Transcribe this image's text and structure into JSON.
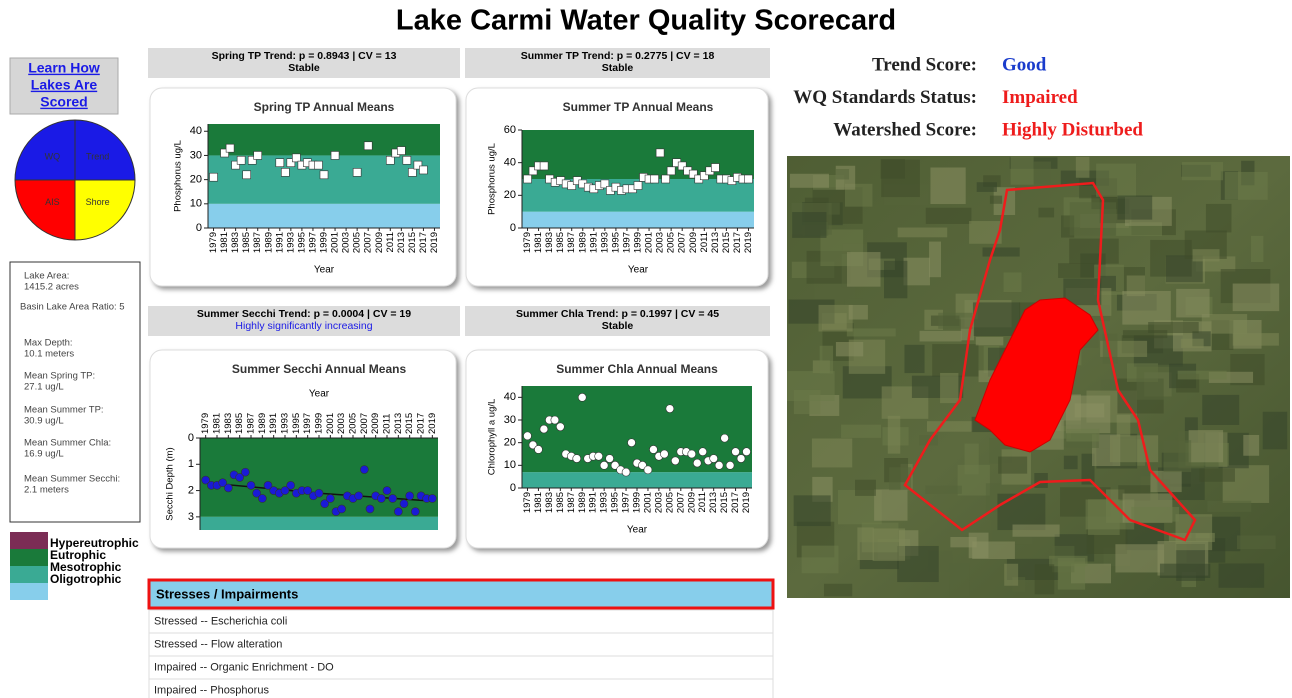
{
  "title": "Lake Carmi Water Quality Scorecard",
  "learn_link": [
    "Learn How",
    "Lakes Are",
    "Scored"
  ],
  "pie": [
    {
      "label": "Trend",
      "color": "#1a1ae6"
    },
    {
      "label": "Shore",
      "color": "#ffff00"
    },
    {
      "label": "AIS",
      "color": "#ff0000"
    },
    {
      "label": "WQ",
      "color": "#1a1ae6"
    }
  ],
  "lake_info": [
    "Lake Area:",
    "1415.2 acres",
    "Basin Lake Area Ratio: 5",
    "Max Depth:",
    "10.1 meters",
    "Mean Spring TP:",
    "27.1 ug/L",
    "Mean Summer TP:",
    "30.9 ug/L",
    "Mean Summer Chla:",
    "16.9 ug/L",
    "Mean Summer Secchi:",
    "2.1 meters"
  ],
  "legend": [
    {
      "name": "Hypereutrophic",
      "color": "#7b2d55"
    },
    {
      "name": "Eutrophic",
      "color": "#1a7a3a"
    },
    {
      "name": "Mesotrophic",
      "color": "#3aaa94"
    },
    {
      "name": "Oligotrophic",
      "color": "#87ceeb"
    }
  ],
  "charts": [
    {
      "type": "scatter",
      "header": "Spring TP Trend: p = 0.8943 | CV = 13",
      "status": "Stable",
      "status_color": "#000000",
      "title": "Spring TP Annual Means",
      "ylabel": "Phosphorus ug/L",
      "xlabel": "Year",
      "marker": "square",
      "marker_color": "#ffffff",
      "xlim": [
        1978,
        2020
      ],
      "xticks": [
        1979,
        1981,
        1983,
        1985,
        1987,
        1989,
        1991,
        1993,
        1995,
        1997,
        1999,
        2001,
        2003,
        2005,
        2007,
        2009,
        2011,
        2013,
        2015,
        2017,
        2019
      ],
      "ylim": [
        0,
        43
      ],
      "yticks": [
        0,
        10,
        20,
        30,
        40
      ],
      "y_inverted": false,
      "x_axis_position": "bottom",
      "bands": [
        {
          "from": 0,
          "to": 10,
          "color": "#87ceeb"
        },
        {
          "from": 10,
          "to": 30,
          "color": "#3aaa94"
        },
        {
          "from": 30,
          "to": 43,
          "color": "#1a7a3a"
        }
      ],
      "x": [
        1979,
        1981,
        1982,
        1983,
        1984,
        1985,
        1986,
        1987,
        1991,
        1992,
        1993,
        1994,
        1995,
        1996,
        1997,
        1998,
        1999,
        2001,
        2005,
        2007,
        2011,
        2012,
        2013,
        2014,
        2015,
        2016,
        2017
      ],
      "values": [
        21,
        31,
        33,
        26,
        28,
        22,
        28,
        30,
        27,
        23,
        27,
        29,
        26,
        27,
        26,
        26,
        22,
        30,
        23,
        34,
        28,
        31,
        32,
        28,
        23,
        26,
        24
      ]
    },
    {
      "type": "scatter",
      "header": "Summer TP Trend: p = 0.2775 | CV = 18",
      "status": "Stable",
      "status_color": "#000000",
      "title": "Summer TP Annual Means",
      "ylabel": "Phosphorus ug/L",
      "xlabel": "Year",
      "marker": "square",
      "marker_color": "#ffffff",
      "xlim": [
        1978,
        2020
      ],
      "xticks": [
        1979,
        1981,
        1983,
        1985,
        1987,
        1989,
        1991,
        1993,
        1995,
        1997,
        1999,
        2001,
        2003,
        2005,
        2007,
        2009,
        2011,
        2013,
        2015,
        2017,
        2019
      ],
      "ylim": [
        0,
        60
      ],
      "yticks": [
        0,
        20,
        40,
        60
      ],
      "y_inverted": false,
      "x_axis_position": "bottom",
      "bands": [
        {
          "from": 0,
          "to": 10,
          "color": "#87ceeb"
        },
        {
          "from": 10,
          "to": 30,
          "color": "#3aaa94"
        },
        {
          "from": 30,
          "to": 60,
          "color": "#1a7a3a"
        }
      ],
      "x": [
        1979,
        1980,
        1981,
        1982,
        1983,
        1984,
        1985,
        1986,
        1987,
        1988,
        1989,
        1990,
        1991,
        1992,
        1993,
        1994,
        1995,
        1996,
        1997,
        1998,
        1999,
        2000,
        2001,
        2002,
        2003,
        2004,
        2005,
        2006,
        2007,
        2008,
        2009,
        2010,
        2011,
        2012,
        2013,
        2014,
        2015,
        2016,
        2017,
        2018,
        2019
      ],
      "values": [
        30,
        35,
        38,
        38,
        30,
        28,
        29,
        27,
        26,
        29,
        27,
        25,
        24,
        26,
        27,
        23,
        25,
        23,
        24,
        24,
        26,
        31,
        30,
        30,
        46,
        30,
        35,
        40,
        38,
        35,
        33,
        30,
        32,
        35,
        37,
        30,
        30,
        29,
        31,
        30,
        30
      ]
    },
    {
      "type": "scatter",
      "header": "Summer Secchi Trend: p = 0.0004 | CV = 19",
      "status": "Highly significantly increasing",
      "status_color": "#1a1ae6",
      "title": "Summer Secchi Annual Means",
      "ylabel": "Secchi Depth (m)",
      "xlabel": "Year",
      "marker": "circle",
      "marker_color": "#1a1ad6",
      "xlim": [
        1978,
        2020
      ],
      "xticks": [
        1979,
        1981,
        1983,
        1985,
        1987,
        1989,
        1991,
        1993,
        1995,
        1997,
        1999,
        2001,
        2003,
        2005,
        2007,
        2009,
        2011,
        2013,
        2015,
        2017,
        2019
      ],
      "ylim": [
        0,
        3.5
      ],
      "yticks": [
        0,
        1,
        2,
        3
      ],
      "y_inverted": true,
      "x_axis_position": "top",
      "bands": [
        {
          "from": 0,
          "to": 3,
          "color": "#1a7a3a"
        },
        {
          "from": 3,
          "to": 3.5,
          "color": "#3aaa94"
        }
      ],
      "x": [
        1979,
        1980,
        1981,
        1982,
        1983,
        1984,
        1985,
        1986,
        1987,
        1988,
        1989,
        1990,
        1991,
        1992,
        1993,
        1994,
        1995,
        1996,
        1997,
        1998,
        1999,
        2000,
        2001,
        2002,
        2003,
        2004,
        2005,
        2006,
        2007,
        2008,
        2009,
        2010,
        2011,
        2012,
        2013,
        2014,
        2015,
        2016,
        2017,
        2018,
        2019
      ],
      "values": [
        1.6,
        1.8,
        1.8,
        1.7,
        1.9,
        1.4,
        1.5,
        1.3,
        1.8,
        2.1,
        2.3,
        1.8,
        2.0,
        2.1,
        2.0,
        1.8,
        2.1,
        2.0,
        2.0,
        2.2,
        2.1,
        2.5,
        2.3,
        2.8,
        2.7,
        2.2,
        2.3,
        2.2,
        1.2,
        2.7,
        2.2,
        2.3,
        2.0,
        2.3,
        2.8,
        2.5,
        2.2,
        2.8,
        2.2,
        2.3,
        2.3
      ],
      "trend": {
        "x": [
          1979,
          1999,
          2019
        ],
        "values": [
          1.7,
          2.1,
          2.4
        ]
      }
    },
    {
      "type": "scatter",
      "header": "Summer Chla Trend: p = 0.1997 | CV = 45",
      "status": "Stable",
      "status_color": "#000000",
      "title": "Summer Chla Annual Means",
      "ylabel": "Chlorophyll a ug/L",
      "xlabel": "Year",
      "marker": "circle",
      "marker_color": "#ffffff",
      "xlim": [
        1978,
        2020
      ],
      "xticks": [
        1979,
        1981,
        1983,
        1985,
        1987,
        1989,
        1991,
        1993,
        1995,
        1997,
        1999,
        2001,
        2003,
        2005,
        2007,
        2009,
        2011,
        2013,
        2015,
        2017,
        2019
      ],
      "ylim": [
        0,
        45
      ],
      "yticks": [
        0,
        10,
        20,
        30,
        40
      ],
      "y_inverted": false,
      "x_axis_position": "bottom",
      "bands": [
        {
          "from": 0,
          "to": 7,
          "color": "#3aaa94"
        },
        {
          "from": 7,
          "to": 45,
          "color": "#1a7a3a"
        }
      ],
      "x": [
        1979,
        1980,
        1981,
        1982,
        1983,
        1984,
        1985,
        1986,
        1987,
        1988,
        1989,
        1990,
        1991,
        1992,
        1993,
        1994,
        1995,
        1996,
        1997,
        1998,
        1999,
        2000,
        2001,
        2002,
        2003,
        2004,
        2005,
        2006,
        2007,
        2008,
        2009,
        2010,
        2011,
        2012,
        2013,
        2014,
        2015,
        2016,
        2017,
        2018,
        2019
      ],
      "values": [
        23,
        19,
        17,
        26,
        30,
        30,
        27,
        15,
        14,
        13,
        40,
        13,
        14,
        14,
        10,
        13,
        10,
        8,
        7,
        20,
        11,
        10,
        8,
        17,
        14,
        15,
        35,
        12,
        16,
        16,
        15,
        11,
        16,
        12,
        13,
        10,
        22,
        10,
        16,
        13,
        16
      ]
    }
  ],
  "scores": [
    {
      "label": "Trend Score:",
      "value": "Good",
      "color": "#1a3ccc"
    },
    {
      "label": "WQ Standards Status:",
      "value": "Impaired",
      "color": "#ee1c1c"
    },
    {
      "label": "Watershed Score:",
      "value": "Highly Disturbed",
      "color": "#ee1c1c"
    }
  ],
  "stresses": {
    "header": "Stresses / Impairments",
    "rows": [
      "Stressed -- Escherichia coli",
      "Stressed -- Flow alteration",
      "Impaired -- Organic Enrichment - DO",
      "Impaired -- Phosphorus"
    ]
  }
}
